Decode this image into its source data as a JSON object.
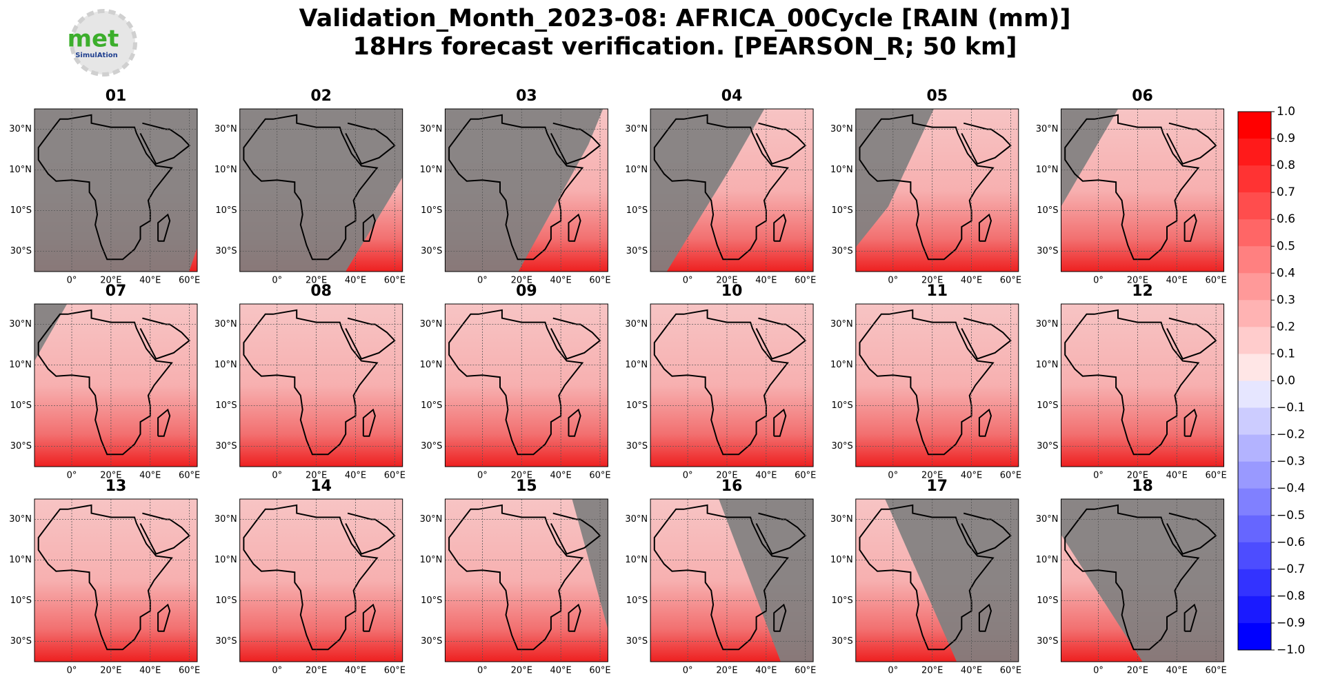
{
  "chart_data": {
    "type": "map-grid",
    "title": [
      "Validation_Month_2023-08: AFRICA_00Cycle [RAIN (mm)]",
      "18Hrs forecast verification.  [PEARSON_R; 50 km]"
    ],
    "logo": {
      "text": "met",
      "subtext": "SimulAtion"
    },
    "panels": [
      "01",
      "02",
      "03",
      "04",
      "05",
      "06",
      "07",
      "08",
      "09",
      "10",
      "11",
      "12",
      "13",
      "14",
      "15",
      "16",
      "17",
      "18"
    ],
    "xlim": [
      -19,
      64
    ],
    "ylim": [
      -40,
      40
    ],
    "xticks": [
      {
        "value": 0,
        "label": "0°"
      },
      {
        "value": 20,
        "label": "20°E"
      },
      {
        "value": 40,
        "label": "40°E"
      },
      {
        "value": 60,
        "label": "60°E"
      }
    ],
    "yticks": [
      {
        "value": 30,
        "label": "30°N"
      },
      {
        "value": 10,
        "label": "10°N"
      },
      {
        "value": -10,
        "label": "10°S"
      },
      {
        "value": -30,
        "label": "30°S"
      }
    ],
    "grid": true,
    "colormap": [
      "#0000ff",
      "#ffffff",
      "#ff0000"
    ],
    "colorbar_lim": [
      -1.0,
      1.0
    ],
    "colorbar_ticks": [
      {
        "value": 1.0,
        "label": "1.0"
      },
      {
        "value": 0.9,
        "label": "0.9"
      },
      {
        "value": 0.8,
        "label": "0.8"
      },
      {
        "value": 0.7,
        "label": "0.7"
      },
      {
        "value": 0.6,
        "label": "0.6"
      },
      {
        "value": 0.5,
        "label": "0.5"
      },
      {
        "value": 0.4,
        "label": "0.4"
      },
      {
        "value": 0.3,
        "label": "0.3"
      },
      {
        "value": 0.2,
        "label": "0.2"
      },
      {
        "value": 0.1,
        "label": "0.1"
      },
      {
        "value": 0.0,
        "label": "0.0"
      },
      {
        "value": -0.1,
        "label": "−0.1"
      },
      {
        "value": -0.2,
        "label": "−0.2"
      },
      {
        "value": -0.3,
        "label": "−0.3"
      },
      {
        "value": -0.4,
        "label": "−0.4"
      },
      {
        "value": -0.5,
        "label": "−0.5"
      },
      {
        "value": -0.6,
        "label": "−0.6"
      },
      {
        "value": -0.7,
        "label": "−0.7"
      },
      {
        "value": -0.8,
        "label": "−0.8"
      },
      {
        "value": -0.9,
        "label": "−0.9"
      },
      {
        "value": -1.0,
        "label": "−1.0"
      }
    ]
  }
}
